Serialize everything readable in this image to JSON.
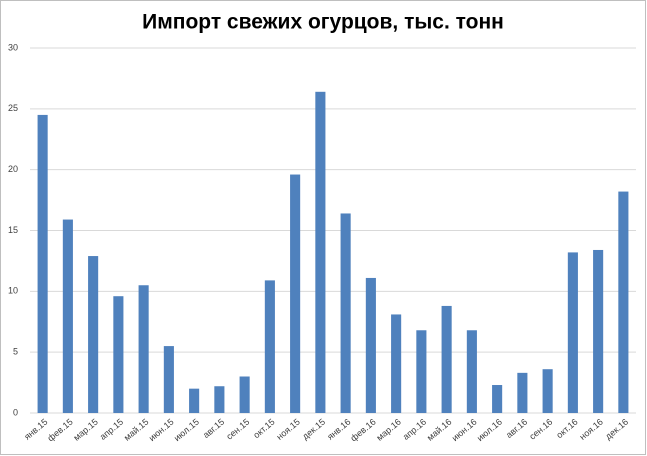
{
  "chart_data": {
    "type": "bar",
    "title": "Импорт свежих огурцов, тыс. тонн",
    "categories": [
      "янв.15",
      "фев.15",
      "мар.15",
      "апр.15",
      "май.15",
      "июн.15",
      "июл.15",
      "авг.15",
      "сен.15",
      "окт.15",
      "ноя.15",
      "дек.15",
      "янв.16",
      "фев.16",
      "мар.16",
      "апр.16",
      "май.16",
      "июн.16",
      "июл.16",
      "авг.16",
      "сен.16",
      "окт.16",
      "ноя.16",
      "дек.16"
    ],
    "values": [
      24.5,
      15.9,
      12.9,
      9.6,
      10.5,
      5.5,
      2.0,
      2.2,
      3.0,
      10.9,
      19.6,
      26.4,
      16.4,
      11.1,
      8.1,
      6.8,
      8.8,
      6.8,
      2.3,
      3.3,
      3.6,
      13.2,
      13.4,
      18.2
    ],
    "color": "#4f81bd",
    "ylim": [
      0,
      30
    ],
    "yticks": [
      0,
      5,
      10,
      15,
      20,
      25,
      30
    ],
    "grid": true
  }
}
